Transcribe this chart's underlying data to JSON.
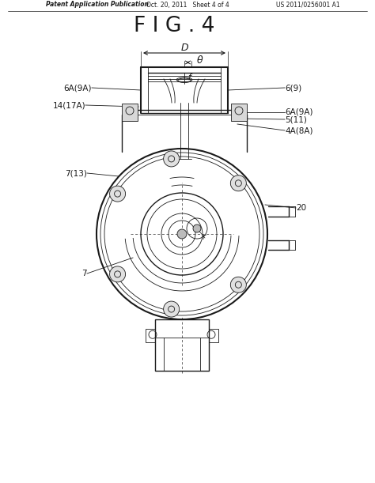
{
  "bg_color": "#ffffff",
  "lc": "#1a1a1a",
  "header_left": "Patent Application Publication",
  "header_mid": "Oct. 20, 2011   Sheet 4 of 4",
  "header_right": "US 2011/0256001 A1",
  "fig_title": "F I G . 4",
  "lbl_6A9A_L": "6A(9A)",
  "lbl_6_9": "6(9)",
  "lbl_14_17A": "14(17A)",
  "lbl_6A9A_R": "6A(9A)",
  "lbl_5_11": "5(11)",
  "lbl_4A8A": "4A(8A)",
  "lbl_7_13": "7(13)",
  "lbl_20": "20",
  "lbl_7": "7",
  "lbl_D": "D",
  "lbl_theta": "θ",
  "lbl_f": "f",
  "lbl_r": "r"
}
